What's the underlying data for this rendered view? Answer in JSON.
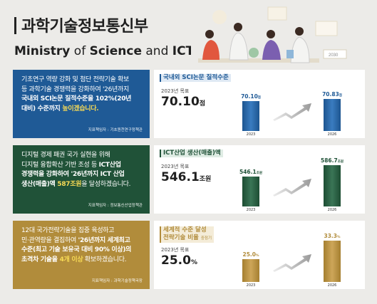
{
  "header": {
    "title": "과학기술정보통신부",
    "subtitle": "Ministry of Science and ICT"
  },
  "cards": [
    {
      "id": "sci",
      "color": "#1f5a96",
      "description": {
        "line1": "기초연구 역량 강화 및 첨단 전략기술 확보",
        "line2": "등 과학기술 경쟁력을 강화하여 '26년까지",
        "line3": "국내외 SCI논문 질적수준을 102%(20년",
        "line4a": "대비) 수준까지 ",
        "line4b": "높이겠습니다."
      },
      "source": "지표책임자 : 기초원천연구정책관",
      "metric": {
        "tag": "국내외 SCI논문 질적수준",
        "target_label": "2023년 목표",
        "target_value": "70.10",
        "target_unit": "점"
      },
      "chart": {
        "categories": [
          "2023",
          "2026"
        ],
        "values": [
          70.1,
          70.83
        ],
        "value_labels": [
          "70.10",
          "70.83"
        ],
        "unit": "점"
      }
    },
    {
      "id": "ict",
      "color": "#205238",
      "description": {
        "line1": "디지털 경제 패권 국가 실현을 위해",
        "line2a": "디지털 융합확산 기반 조성 등 ",
        "line2b": "ICT산업",
        "line3": "경쟁력을 강화하여 '26년까지 ICT 산업",
        "line4a": "생산(매출)액 ",
        "line4b": "587조원",
        "line4c": "을 달성하겠습니다."
      },
      "source": "지표책임자 : 정보통신산업정책관",
      "metric": {
        "tag": "ICT산업 생산(매출)액",
        "target_label": "2023년 목표",
        "target_value": "546.1",
        "target_unit": "조원"
      },
      "chart": {
        "categories": [
          "2023",
          "2026"
        ],
        "values": [
          546.1,
          586.7
        ],
        "value_labels": [
          "546.1",
          "586.7"
        ],
        "unit": "조원"
      }
    },
    {
      "id": "tech",
      "color": "#b18c3b",
      "description": {
        "line1": "12대 국가전략기술을 집중 육성하고",
        "line2a": "민·관역량을 결집하여 ",
        "line2b": "'26년까지 세계최고",
        "line3": "수준(최고 기술 보유국 대비 90% 이상)의",
        "line4a": "초격차 기술을 ",
        "line4b": "4개 이상",
        "line4c": " 확보하겠습니다."
      },
      "source": "지표책임자 : 과학기술정책국장",
      "metric": {
        "tag_line1": "세계적 수준 달성",
        "tag_line2": "전략기술 비율",
        "tag_note": "중점기",
        "target_label": "2023년 목표",
        "target_value": "25.0",
        "target_unit": "%"
      },
      "chart": {
        "categories": [
          "2023",
          "2026"
        ],
        "values": [
          25.0,
          33.3
        ],
        "value_labels": [
          "25.0",
          "33.3"
        ],
        "unit": "%"
      }
    }
  ]
}
